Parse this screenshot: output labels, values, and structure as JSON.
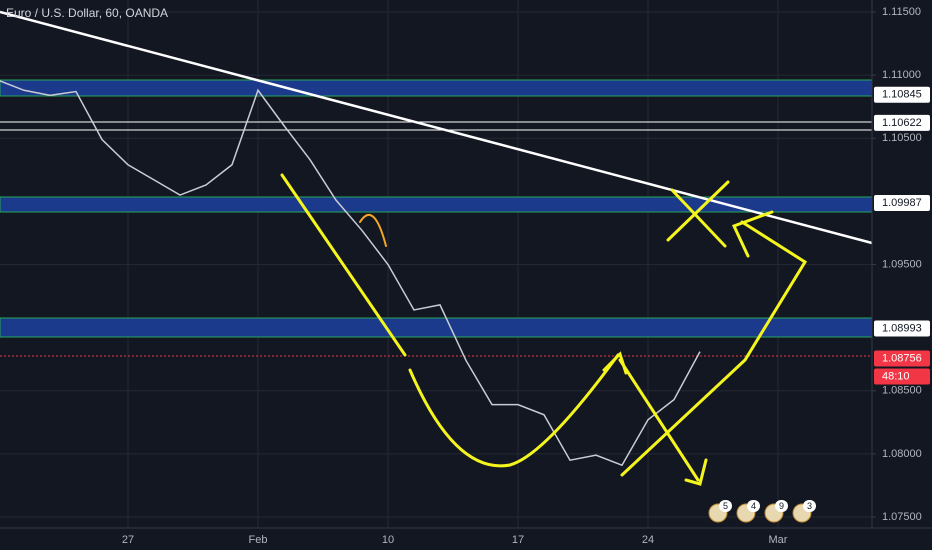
{
  "chart_data": {
    "type": "line",
    "title": "Euro / U.S. Dollar, 60, OANDA",
    "categories": [
      null,
      null,
      null,
      null,
      null,
      "27",
      null,
      null,
      null,
      null,
      "Feb",
      null,
      null,
      null,
      null,
      "10",
      null,
      null,
      null,
      null,
      "17",
      null,
      null,
      null,
      null,
      "24",
      null,
      null,
      null,
      null,
      "Mar"
    ],
    "series": [
      {
        "color": "#c9ccd4",
        "values": [
          1.1096,
          1.1088,
          1.1084,
          1.1087,
          1.1049,
          1.1029,
          1.1017,
          1.1005,
          1.1013,
          1.1029,
          1.1088,
          1.106,
          1.1033,
          1.1001,
          1.0977,
          1.095,
          1.0914,
          1.0918,
          1.0874,
          1.0839,
          1.0839,
          1.0831,
          1.0795,
          1.0799,
          1.0791,
          1.0827,
          1.0843,
          1.0881,
          null,
          null,
          null
        ]
      }
    ],
    "ylim": [
      1.07413,
      1.11595
    ],
    "yticks": [
      {
        "value": 1.115,
        "label": "1.11500"
      },
      {
        "value": 1.11,
        "label": "1.11000"
      },
      {
        "value": 1.105,
        "label": "1.10500"
      },
      {
        "value": 1.095,
        "label": "1.09500"
      },
      {
        "value": 1.085,
        "label": "1.08500"
      },
      {
        "value": 1.08,
        "label": "1.08000"
      },
      {
        "value": 1.075,
        "label": "1.07500"
      }
    ],
    "grid": true,
    "price_markers": [
      {
        "value": 1.10845,
        "label": "1.10845",
        "color": "#ffffff"
      },
      {
        "value": 1.10622,
        "label": "1.10622",
        "color": "#ffffff"
      },
      {
        "value": 1.09987,
        "label": "1.09987",
        "color": "#ffffff"
      },
      {
        "value": 1.08993,
        "label": "1.08993",
        "color": "#ffffff"
      },
      {
        "value": 1.08756,
        "label": "1.08756",
        "color": "#f23645"
      }
    ],
    "countdown": "48:10",
    "event_counts": [
      5,
      4,
      9,
      3
    ]
  }
}
